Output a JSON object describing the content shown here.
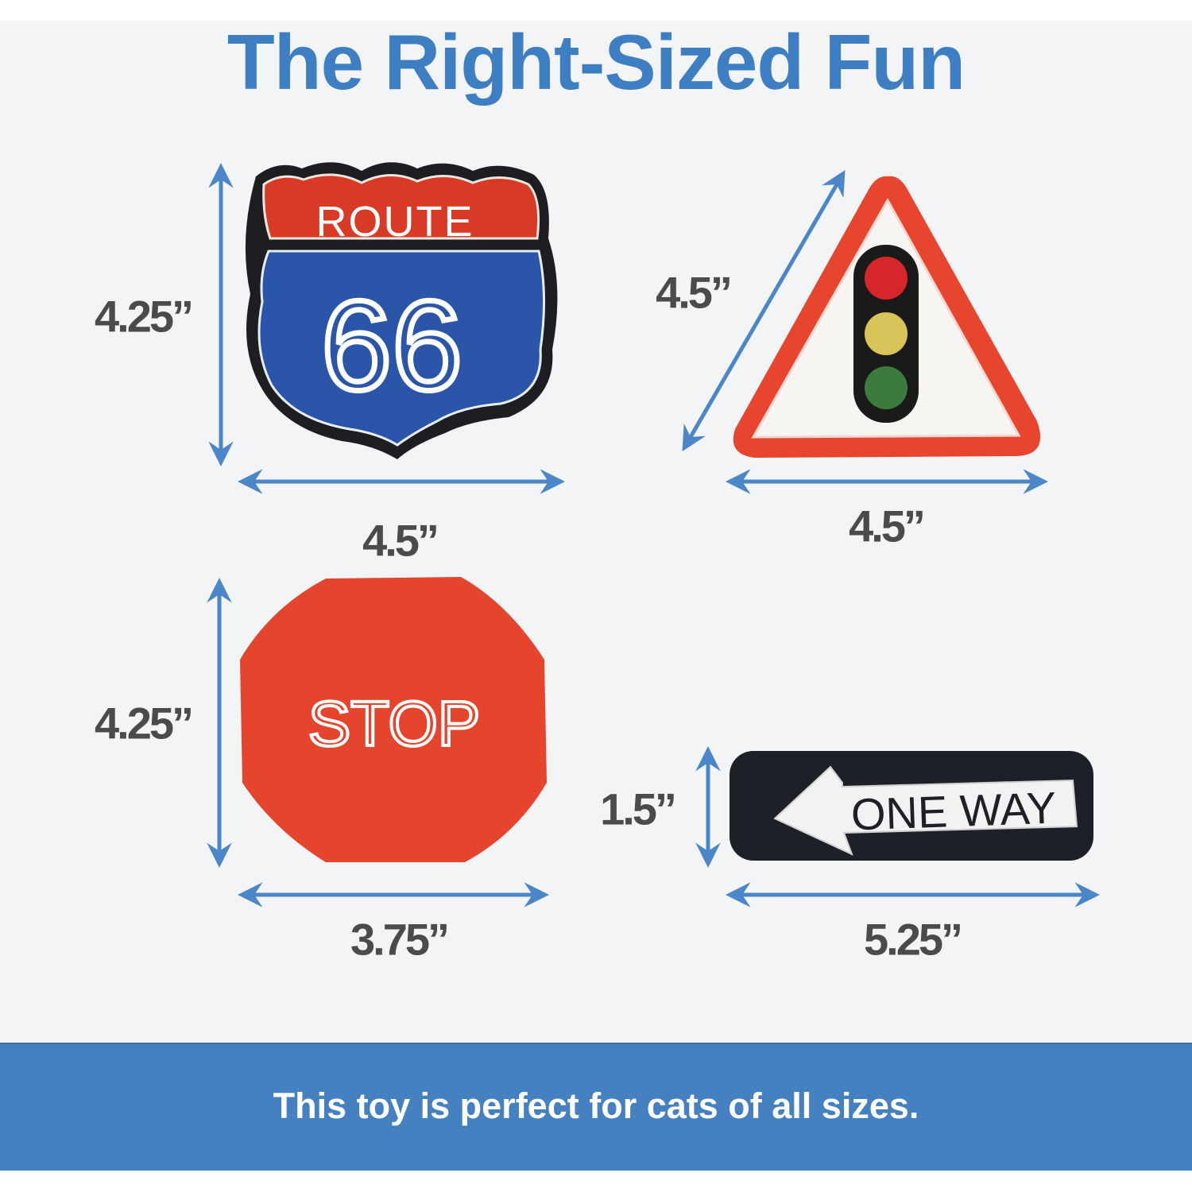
{
  "title": "The Right-Sized Fun",
  "colors": {
    "accent": "#3e7fc4",
    "arrow": "#4a86c8",
    "band": "#4581c0",
    "label": "#4b4b4b",
    "background": "#f3f4f6"
  },
  "toys": [
    {
      "name": "route-66",
      "sign_text_top": "ROUTE",
      "sign_text_main": "66",
      "height_label": "4.25”",
      "width_label": "4.5”"
    },
    {
      "name": "traffic-light-triangle",
      "side_label": "4.5”",
      "width_label": "4.5”"
    },
    {
      "name": "stop",
      "sign_text": "STOP",
      "height_label": "4.25”",
      "width_label": "3.75”"
    },
    {
      "name": "one-way",
      "sign_text": "ONE WAY",
      "height_label": "1.5”",
      "width_label": "5.25”"
    }
  ],
  "footer": {
    "text": "This toy is perfect for cats of all sizes."
  }
}
